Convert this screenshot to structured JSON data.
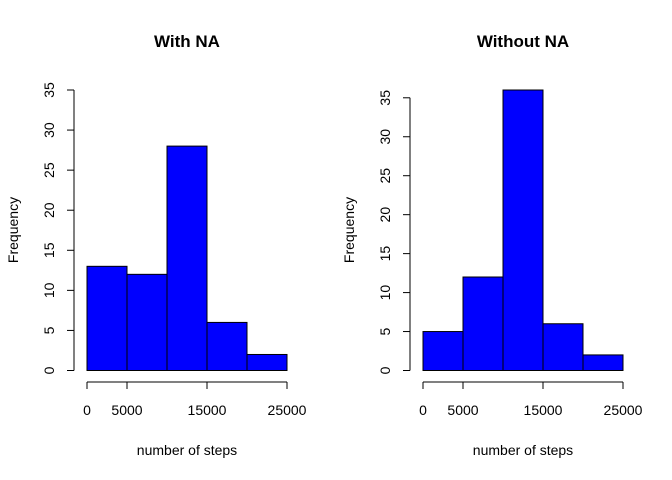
{
  "chart_data": [
    {
      "type": "bar",
      "title": "With NA",
      "xlabel": "number of steps",
      "ylabel": "Frequency",
      "bin_edges": [
        0,
        5000,
        10000,
        15000,
        20000,
        25000
      ],
      "values": [
        13,
        12,
        28,
        6,
        2
      ],
      "ylim": [
        0,
        35
      ],
      "xlim": [
        0,
        25000
      ],
      "x_ticks": [
        0,
        5000,
        15000,
        25000
      ],
      "x_tick_labels": [
        "0",
        "5000",
        "15000",
        "25000"
      ],
      "y_ticks": [
        0,
        5,
        10,
        15,
        20,
        25,
        30,
        35
      ],
      "y_tick_labels": [
        "0",
        "5",
        "10",
        "15",
        "20",
        "25",
        "30",
        "35"
      ],
      "bar_color": "#0000ff",
      "border_color": "#000000",
      "grid": false
    },
    {
      "type": "bar",
      "title": "Without NA",
      "xlabel": "number of steps",
      "ylabel": "Frequency",
      "bin_edges": [
        0,
        5000,
        10000,
        15000,
        20000,
        25000
      ],
      "values": [
        5,
        12,
        36,
        6,
        2
      ],
      "ylim": [
        0,
        36
      ],
      "xlim": [
        0,
        25000
      ],
      "x_ticks": [
        0,
        5000,
        15000,
        25000
      ],
      "x_tick_labels": [
        "0",
        "5000",
        "15000",
        "25000"
      ],
      "y_ticks": [
        0,
        5,
        10,
        15,
        20,
        25,
        30,
        35
      ],
      "y_tick_labels": [
        "0",
        "5",
        "10",
        "15",
        "20",
        "25",
        "30",
        "35"
      ],
      "bar_color": "#0000ff",
      "border_color": "#000000",
      "grid": false
    }
  ]
}
